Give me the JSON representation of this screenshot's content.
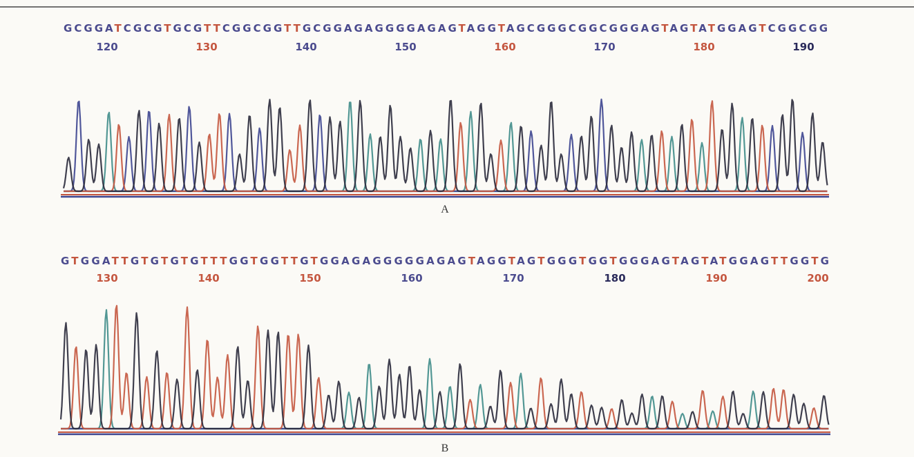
{
  "panels": [
    {
      "sequence": "GCGGATCGCGTGCGTTCGGCGGTTGCGGAGAGGGGAGAGTAGGTAGCGGGCGGCGGGAGTAGTATGGAGTCGGCGG",
      "positions": [
        "120",
        "130",
        "140",
        "150",
        "160",
        "170",
        "180",
        "190"
      ],
      "label": "A"
    },
    {
      "sequence": "GTGGATTGTGTGTGTTTGGTGGTTGTGGAGAGGGGGAGAGTAGGTAGTGGGTGGTGGGAGTAGTATGGAGTTGGTG",
      "positions": [
        "130",
        "140",
        "150",
        "160",
        "170",
        "180",
        "190",
        "200"
      ],
      "label": "B"
    }
  ]
}
